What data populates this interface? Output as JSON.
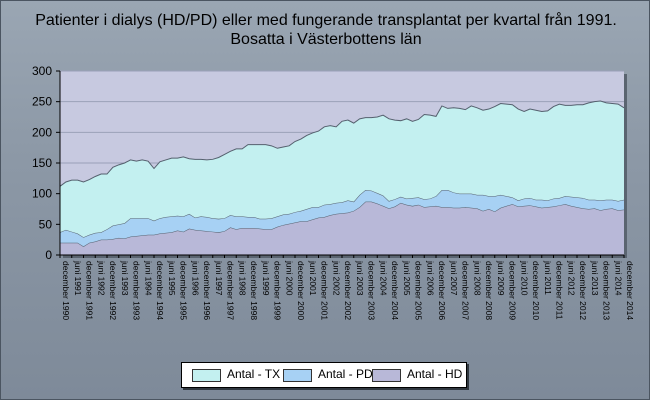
{
  "title_line1": "Patienter i dialys (HD/PD) eller med fungerande transplantat per kvartal från 1991.",
  "title_line2": "Bosatta i Västerbottens län",
  "chart_data": {
    "type": "area",
    "stacked": true,
    "ylim": [
      0,
      300
    ],
    "yticks": [
      0,
      50,
      100,
      150,
      200,
      250,
      300
    ],
    "grid": true,
    "legend_position": "bottom",
    "x": [
      "december 1990",
      "mars 1991",
      "juni 1991",
      "september 1991",
      "december 1991",
      "mars 1992",
      "juni 1992",
      "september 1992",
      "december 1992",
      "mars 1993",
      "juni 1993",
      "september 1993",
      "december 1993",
      "mars 1994",
      "juni 1994",
      "september 1994",
      "december 1994",
      "mars 1995",
      "juni 1995",
      "september 1995",
      "december 1995",
      "mars 1996",
      "juni 1996",
      "september 1996",
      "december 1996",
      "mars 1997",
      "juni 1997",
      "september 1997",
      "december 1997",
      "mars 1998",
      "juni 1998",
      "september 1998",
      "december 1998",
      "mars 1999",
      "juni 1999",
      "september 1999",
      "december 1999",
      "mars 2000",
      "juni 2000",
      "september 2000",
      "december 2000",
      "mars 2001",
      "juni 2001",
      "september 2001",
      "december 2001",
      "mars 2002",
      "juni 2002",
      "september 2002",
      "december 2002",
      "mars 2003",
      "juni 2003",
      "september 2003",
      "december 2003",
      "mars 2004",
      "juni 2004",
      "september 2004",
      "december 2004",
      "mars 2005",
      "juni 2005",
      "september 2005",
      "december 2005",
      "mars 2006",
      "juni 2006",
      "september 2006",
      "december 2006",
      "mars 2007",
      "juni 2007",
      "september 2007",
      "december 2007",
      "mars 2008",
      "juni 2008",
      "september 2008",
      "december 2008",
      "mars 2009",
      "juni 2009",
      "september 2009",
      "december 2009",
      "mars 2010",
      "juni 2010",
      "september 2010",
      "december 2010",
      "mars 2011",
      "juni 2011",
      "september 2011",
      "december 2011",
      "mars 2012",
      "juni 2012",
      "september 2012",
      "december 2012",
      "mars 2013",
      "juni 2013",
      "september 2013",
      "december 2013",
      "mars 2014",
      "juni 2014",
      "september 2014",
      "december 2014"
    ],
    "x_tick_labels": [
      "december 1990",
      "juni 1991",
      "december 1991",
      "juni 1992",
      "december 1992",
      "juni 1993",
      "december 1993",
      "juni 1994",
      "december 1994",
      "juni 1995",
      "december 1995",
      "juni 1996",
      "december 1996",
      "juni 1997",
      "december 1997",
      "juni 1998",
      "december 1998",
      "juni 1999",
      "december 1999",
      "juni 2000",
      "december 2000",
      "juni 2001",
      "december 2001",
      "juni 2002",
      "december 2002",
      "juni 2003",
      "december 2003",
      "juni 2004",
      "december 2004",
      "juni 2005",
      "december 2005",
      "juni 2006",
      "december 2006",
      "juni 2007",
      "december 2007",
      "juni 2008",
      "december 2008",
      "juni 2009",
      "december 2009",
      "juni 2010",
      "december 2010",
      "juni 2011",
      "december 2011",
      "juni 2012",
      "december 2012",
      "juni 2013",
      "december 2013",
      "juni 2014",
      "december 2014"
    ],
    "series": [
      {
        "name": "Antal - HD",
        "color": "#b8b8d8",
        "values": [
          20,
          20,
          20,
          20,
          14,
          20,
          22,
          25,
          25,
          26,
          28,
          27,
          30,
          31,
          32,
          33,
          33,
          35,
          36,
          37,
          40,
          38,
          43,
          41,
          40,
          39,
          38,
          37,
          39,
          45,
          42,
          44,
          44,
          44,
          43,
          42,
          42,
          46,
          49,
          51,
          53,
          55,
          55,
          58,
          61,
          62,
          65,
          67,
          68,
          69,
          72,
          78,
          87,
          87,
          84,
          80,
          76,
          79,
          85,
          82,
          80,
          82,
          78,
          79,
          80,
          78,
          78,
          77,
          77,
          78,
          77,
          76,
          72,
          75,
          71,
          77,
          80,
          83,
          79,
          80,
          81,
          79,
          77,
          78,
          79,
          81,
          83,
          80,
          78,
          76,
          75,
          76,
          73,
          75,
          76,
          73,
          74
        ]
      },
      {
        "name": "Antal - PD",
        "color": "#a7d1f4",
        "values": [
          17,
          21,
          18,
          15,
          15,
          13,
          14,
          12,
          17,
          22,
          22,
          25,
          30,
          29,
          28,
          27,
          23,
          25,
          26,
          26,
          24,
          25,
          24,
          20,
          23,
          23,
          22,
          22,
          21,
          20,
          21,
          19,
          18,
          18,
          16,
          17,
          18,
          17,
          17,
          16,
          17,
          17,
          20,
          20,
          17,
          20,
          18,
          18,
          18,
          20,
          15,
          20,
          19,
          18,
          17,
          17,
          12,
          12,
          10,
          10,
          13,
          12,
          13,
          13,
          16,
          28,
          28,
          25,
          23,
          22,
          23,
          22,
          26,
          21,
          25,
          21,
          16,
          11,
          10,
          12,
          12,
          11,
          13,
          11,
          13,
          12,
          13,
          15,
          16,
          17,
          15,
          14,
          16,
          15,
          14,
          15,
          16
        ]
      },
      {
        "name": "Antal - TX",
        "color": "#c3f0f0",
        "values": [
          75,
          78,
          84,
          87,
          90,
          90,
          92,
          95,
          90,
          95,
          97,
          98,
          95,
          93,
          95,
          93,
          85,
          92,
          93,
          95,
          94,
          97,
          90,
          95,
          93,
          93,
          96,
          100,
          104,
          104,
          110,
          110,
          118,
          118,
          121,
          121,
          118,
          111,
          110,
          111,
          115,
          117,
          120,
          121,
          124,
          127,
          128,
          124,
          132,
          131,
          128,
          124,
          118,
          119,
          124,
          131,
          134,
          129,
          124,
          130,
          125,
          127,
          138,
          136,
          130,
          137,
          133,
          138,
          139,
          137,
          143,
          142,
          138,
          142,
          146,
          149,
          150,
          151,
          149,
          142,
          145,
          146,
          144,
          146,
          150,
          153,
          148,
          149,
          151,
          152,
          158,
          160,
          162,
          158,
          157,
          158,
          150
        ]
      }
    ],
    "colors": {
      "background": "#8c98a6",
      "plot_area": "#c7c9e0",
      "grid": "#9aa0b8",
      "axis": "#000000"
    }
  },
  "legend": {
    "items": [
      {
        "label": "Antal - TX",
        "color": "#c3f0f0"
      },
      {
        "label": "Antal - PD",
        "color": "#a7d1f4"
      },
      {
        "label": "Antal - HD",
        "color": "#b8b8d8"
      }
    ]
  }
}
